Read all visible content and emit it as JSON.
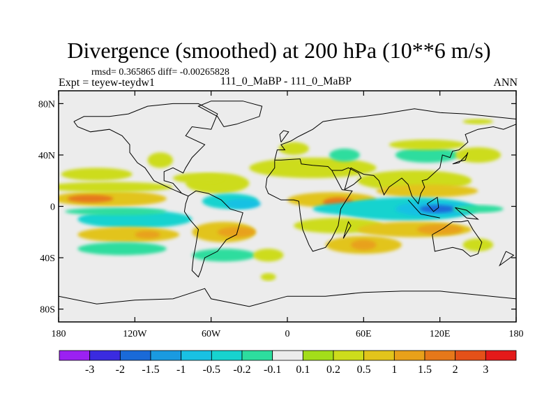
{
  "chart_data": {
    "type": "heatmap",
    "title": "Divergence (smoothed) at 200 hPa (10**6 m/s)",
    "stats_text": "rmsd= 0.365865 diff= -0.00265828",
    "experiment_text": "Expt = teyew-teydw1",
    "cases_text": "111_0_MaBP - 111_0_MaBP",
    "season": "ANN",
    "xlim": [
      -180,
      180
    ],
    "ylim": [
      -90,
      90
    ],
    "x_ticks": [
      {
        "value": -180,
        "label": "180"
      },
      {
        "value": -120,
        "label": "120W"
      },
      {
        "value": -60,
        "label": "60W"
      },
      {
        "value": 0,
        "label": "0"
      },
      {
        "value": 60,
        "label": "60E"
      },
      {
        "value": 120,
        "label": "120E"
      },
      {
        "value": 180,
        "label": "180"
      }
    ],
    "y_ticks": [
      {
        "value": 80,
        "label": "80N"
      },
      {
        "value": 40,
        "label": "40N"
      },
      {
        "value": 0,
        "label": "0"
      },
      {
        "value": -40,
        "label": "40S"
      },
      {
        "value": -80,
        "label": "80S"
      }
    ],
    "colorbar": {
      "colors": [
        "#9b21f2",
        "#3a2be0",
        "#1a6ad8",
        "#1a9ae0",
        "#19c1e3",
        "#17d3cf",
        "#2ddd9e",
        "#ececec",
        "#a3dd1a",
        "#cddc1c",
        "#e2c41b",
        "#e8a11a",
        "#e6781a",
        "#e45119",
        "#e41a1a"
      ],
      "labels": [
        "-3",
        "-2",
        "-1.5",
        "-1",
        "-0.5",
        "-0.2",
        "-0.1",
        "0.1",
        "0.2",
        "0.5",
        "1",
        "1.5",
        "2",
        "3"
      ]
    },
    "field_blobs": [
      {
        "lon": -140,
        "lat": 6,
        "rlon": 45,
        "rlat": 6,
        "value": 0.5
      },
      {
        "lon": -155,
        "lat": 6,
        "rlon": 18,
        "rlat": 3,
        "value": 1.5
      },
      {
        "lon": -140,
        "lat": 15,
        "rlon": 50,
        "rlat": 4,
        "value": 0.2
      },
      {
        "lon": -150,
        "lat": 25,
        "rlon": 28,
        "rlat": 5,
        "value": 0.2
      },
      {
        "lon": -120,
        "lat": -10,
        "rlon": 45,
        "rlat": 7,
        "value": -0.5
      },
      {
        "lon": -135,
        "lat": -4,
        "rlon": 40,
        "rlat": 3,
        "value": -0.2
      },
      {
        "lon": -125,
        "lat": -22,
        "rlon": 40,
        "rlat": 6,
        "value": 0.5
      },
      {
        "lon": -110,
        "lat": -22,
        "rlon": 10,
        "rlat": 3,
        "value": 1
      },
      {
        "lon": -130,
        "lat": -33,
        "rlon": 35,
        "rlat": 5,
        "value": -0.2
      },
      {
        "lon": -100,
        "lat": 36,
        "rlon": 10,
        "rlat": 6,
        "value": 0.2
      },
      {
        "lon": -55,
        "lat": 18,
        "rlon": 25,
        "rlat": 8,
        "value": 0.2
      },
      {
        "lon": -70,
        "lat": 22,
        "rlon": 20,
        "rlat": 4,
        "value": 0.2
      },
      {
        "lon": -45,
        "lat": 4,
        "rlon": 22,
        "rlat": 6,
        "value": -0.5
      },
      {
        "lon": -35,
        "lat": 2,
        "rlon": 14,
        "rlat": 4,
        "value": -1
      },
      {
        "lon": -50,
        "lat": -20,
        "rlon": 25,
        "rlat": 8,
        "value": 0.5
      },
      {
        "lon": -40,
        "lat": -20,
        "rlon": 15,
        "rlat": 4,
        "value": 1
      },
      {
        "lon": -50,
        "lat": -38,
        "rlon": 25,
        "rlat": 5,
        "value": -0.2
      },
      {
        "lon": -15,
        "lat": -38,
        "rlon": 12,
        "rlat": 5,
        "value": 0.2
      },
      {
        "lon": -15,
        "lat": -55,
        "rlon": 6,
        "rlat": 3,
        "value": 0.2
      },
      {
        "lon": 35,
        "lat": 5,
        "rlon": 35,
        "rlat": 6,
        "value": 0.5
      },
      {
        "lon": 40,
        "lat": 3,
        "rlon": 12,
        "rlat": 4,
        "value": 1.5
      },
      {
        "lon": 20,
        "lat": 30,
        "rlon": 50,
        "rlat": 8,
        "value": 0.2
      },
      {
        "lon": 45,
        "lat": 40,
        "rlon": 12,
        "rlat": 5,
        "value": -0.2
      },
      {
        "lon": 5,
        "lat": 45,
        "rlon": 12,
        "rlat": 5,
        "value": 0.2
      },
      {
        "lon": 60,
        "lat": -2,
        "rlon": 40,
        "rlat": 5,
        "value": -0.5
      },
      {
        "lon": 40,
        "lat": -15,
        "rlon": 35,
        "rlat": 6,
        "value": 0.2
      },
      {
        "lon": 60,
        "lat": -30,
        "rlon": 30,
        "rlat": 7,
        "value": 0.5
      },
      {
        "lon": 60,
        "lat": -30,
        "rlon": 10,
        "rlat": 4,
        "value": 1
      },
      {
        "lon": 100,
        "lat": 20,
        "rlon": 45,
        "rlat": 8,
        "value": 0.2
      },
      {
        "lon": 110,
        "lat": 12,
        "rlon": 40,
        "rlat": 5,
        "value": 0.5
      },
      {
        "lon": 95,
        "lat": -2,
        "rlon": 55,
        "rlat": 9,
        "value": -0.5
      },
      {
        "lon": 115,
        "lat": -2,
        "rlon": 30,
        "rlat": 6,
        "value": -1
      },
      {
        "lon": 118,
        "lat": -2,
        "rlon": 14,
        "rlat": 3,
        "value": -2
      },
      {
        "lon": 150,
        "lat": -2,
        "rlon": 20,
        "rlat": 3,
        "value": -0.2
      },
      {
        "lon": 100,
        "lat": -18,
        "rlon": 45,
        "rlat": 6,
        "value": 0.5
      },
      {
        "lon": 120,
        "lat": -18,
        "rlon": 18,
        "rlat": 4,
        "value": 1
      },
      {
        "lon": 110,
        "lat": 40,
        "rlon": 25,
        "rlat": 6,
        "value": -0.2
      },
      {
        "lon": 110,
        "lat": 48,
        "rlon": 30,
        "rlat": 4,
        "value": 0.2
      },
      {
        "lon": 150,
        "lat": 40,
        "rlon": 18,
        "rlat": 6,
        "value": 0.2
      },
      {
        "lon": 150,
        "lat": 66,
        "rlon": 12,
        "rlat": 2,
        "value": 0.2
      },
      {
        "lon": 150,
        "lat": -30,
        "rlon": 12,
        "rlat": 5,
        "value": 0.2
      }
    ],
    "coastlines": [
      [
        [
          -168,
          66
        ],
        [
          -160,
          70
        ],
        [
          -140,
          70
        ],
        [
          -125,
          72
        ],
        [
          -110,
          78
        ],
        [
          -90,
          80
        ],
        [
          -70,
          80
        ],
        [
          -55,
          72
        ],
        [
          -60,
          60
        ],
        [
          -75,
          62
        ],
        [
          -80,
          55
        ],
        [
          -65,
          48
        ],
        [
          -75,
          38
        ],
        [
          -80,
          30
        ],
        [
          -82,
          26
        ],
        [
          -90,
          30
        ],
        [
          -97,
          27
        ],
        [
          -97,
          20
        ],
        [
          -90,
          18
        ],
        [
          -83,
          10
        ],
        [
          -78,
          8
        ],
        [
          -92,
          14
        ],
        [
          -105,
          20
        ],
        [
          -112,
          30
        ],
        [
          -118,
          34
        ],
        [
          -124,
          42
        ],
        [
          -124,
          48
        ],
        [
          -130,
          55
        ],
        [
          -140,
          60
        ],
        [
          -155,
          58
        ],
        [
          -165,
          62
        ],
        [
          -168,
          66
        ]
      ],
      [
        [
          -78,
          8
        ],
        [
          -72,
          12
        ],
        [
          -62,
          10
        ],
        [
          -52,
          5
        ],
        [
          -45,
          -2
        ],
        [
          -35,
          -5
        ],
        [
          -38,
          -15
        ],
        [
          -40,
          -22
        ],
        [
          -48,
          -26
        ],
        [
          -55,
          -35
        ],
        [
          -65,
          -40
        ],
        [
          -68,
          -50
        ],
        [
          -70,
          -55
        ],
        [
          -75,
          -50
        ],
        [
          -74,
          -40
        ],
        [
          -72,
          -30
        ],
        [
          -70,
          -18
        ],
        [
          -77,
          -10
        ],
        [
          -81,
          -4
        ],
        [
          -80,
          2
        ],
        [
          -78,
          8
        ]
      ],
      [
        [
          -50,
          62
        ],
        [
          -40,
          64
        ],
        [
          -22,
          70
        ],
        [
          -20,
          78
        ],
        [
          -35,
          82
        ],
        [
          -60,
          82
        ],
        [
          -70,
          78
        ],
        [
          -55,
          70
        ],
        [
          -50,
          62
        ]
      ],
      [
        [
          -10,
          36
        ],
        [
          -5,
          36
        ],
        [
          10,
          37
        ],
        [
          11,
          33
        ],
        [
          20,
          32
        ],
        [
          32,
          31
        ],
        [
          35,
          28
        ],
        [
          43,
          13
        ],
        [
          51,
          12
        ],
        [
          42,
          -2
        ],
        [
          40,
          -15
        ],
        [
          35,
          -25
        ],
        [
          30,
          -32
        ],
        [
          20,
          -35
        ],
        [
          17,
          -30
        ],
        [
          12,
          -18
        ],
        [
          10,
          -5
        ],
        [
          9,
          4
        ],
        [
          5,
          5
        ],
        [
          -5,
          5
        ],
        [
          -15,
          10
        ],
        [
          -17,
          15
        ],
        [
          -16,
          22
        ],
        [
          -10,
          30
        ],
        [
          -10,
          36
        ]
      ],
      [
        [
          -10,
          36
        ],
        [
          -8,
          44
        ],
        [
          -2,
          44
        ],
        [
          -5,
          48
        ],
        [
          3,
          51
        ],
        [
          8,
          54
        ],
        [
          12,
          56
        ],
        [
          20,
          60
        ],
        [
          28,
          66
        ],
        [
          40,
          68
        ],
        [
          60,
          70
        ],
        [
          75,
          72
        ],
        [
          100,
          76
        ],
        [
          120,
          73
        ],
        [
          140,
          72
        ],
        [
          160,
          70
        ],
        [
          180,
          68
        ]
      ],
      [
        [
          35,
          28
        ],
        [
          43,
          28
        ],
        [
          48,
          30
        ],
        [
          56,
          26
        ],
        [
          58,
          22
        ],
        [
          52,
          17
        ],
        [
          45,
          13
        ],
        [
          50,
          30
        ],
        [
          60,
          25
        ],
        [
          68,
          24
        ],
        [
          72,
          20
        ],
        [
          76,
          9
        ],
        [
          80,
          15
        ],
        [
          90,
          22
        ],
        [
          95,
          17
        ],
        [
          98,
          8
        ],
        [
          103,
          2
        ],
        [
          105,
          10
        ],
        [
          108,
          15
        ],
        [
          106,
          20
        ],
        [
          110,
          21
        ],
        [
          120,
          30
        ],
        [
          122,
          40
        ],
        [
          128,
          38
        ],
        [
          130,
          43
        ],
        [
          135,
          44
        ],
        [
          142,
          50
        ],
        [
          140,
          56
        ],
        [
          150,
          60
        ],
        [
          162,
          62
        ],
        [
          170,
          60
        ],
        [
          180,
          64
        ]
      ],
      [
        [
          114,
          -22
        ],
        [
          123,
          -17
        ],
        [
          130,
          -12
        ],
        [
          137,
          -12
        ],
        [
          142,
          -11
        ],
        [
          146,
          -18
        ],
        [
          153,
          -28
        ],
        [
          150,
          -37
        ],
        [
          144,
          -39
        ],
        [
          138,
          -34
        ],
        [
          130,
          -32
        ],
        [
          116,
          -35
        ],
        [
          114,
          -22
        ]
      ],
      [
        [
          -180,
          -70
        ],
        [
          -150,
          -76
        ],
        [
          -120,
          -73
        ],
        [
          -90,
          -72
        ],
        [
          -65,
          -64
        ],
        [
          -60,
          -72
        ],
        [
          -30,
          -78
        ],
        [
          0,
          -70
        ],
        [
          30,
          -70
        ],
        [
          60,
          -67
        ],
        [
          90,
          -66
        ],
        [
          120,
          -66
        ],
        [
          150,
          -69
        ],
        [
          180,
          -72
        ]
      ],
      [
        [
          95,
          5
        ],
        [
          105,
          -6
        ],
        [
          115,
          -8
        ],
        [
          120,
          -9
        ]
      ],
      [
        [
          110,
          2
        ],
        [
          118,
          7
        ],
        [
          119,
          -1
        ],
        [
          115,
          -4
        ],
        [
          110,
          2
        ]
      ],
      [
        [
          132,
          -1
        ],
        [
          141,
          -3
        ],
        [
          150,
          -10
        ],
        [
          141,
          -9
        ],
        [
          132,
          -1
        ]
      ],
      [
        [
          172,
          -35
        ],
        [
          178,
          -38
        ],
        [
          174,
          -41
        ],
        [
          167,
          -46
        ],
        [
          172,
          -35
        ]
      ],
      [
        [
          -5,
          50
        ],
        [
          1,
          58
        ],
        [
          -3,
          59
        ],
        [
          -6,
          56
        ],
        [
          -5,
          50
        ]
      ],
      [
        [
          130,
          33
        ],
        [
          135,
          35
        ],
        [
          140,
          36
        ],
        [
          142,
          42
        ],
        [
          141,
          40
        ],
        [
          135,
          34
        ],
        [
          130,
          33
        ]
      ],
      [
        [
          44,
          -25
        ],
        [
          50,
          -15
        ],
        [
          48,
          -12
        ],
        [
          44,
          -25
        ]
      ]
    ]
  }
}
